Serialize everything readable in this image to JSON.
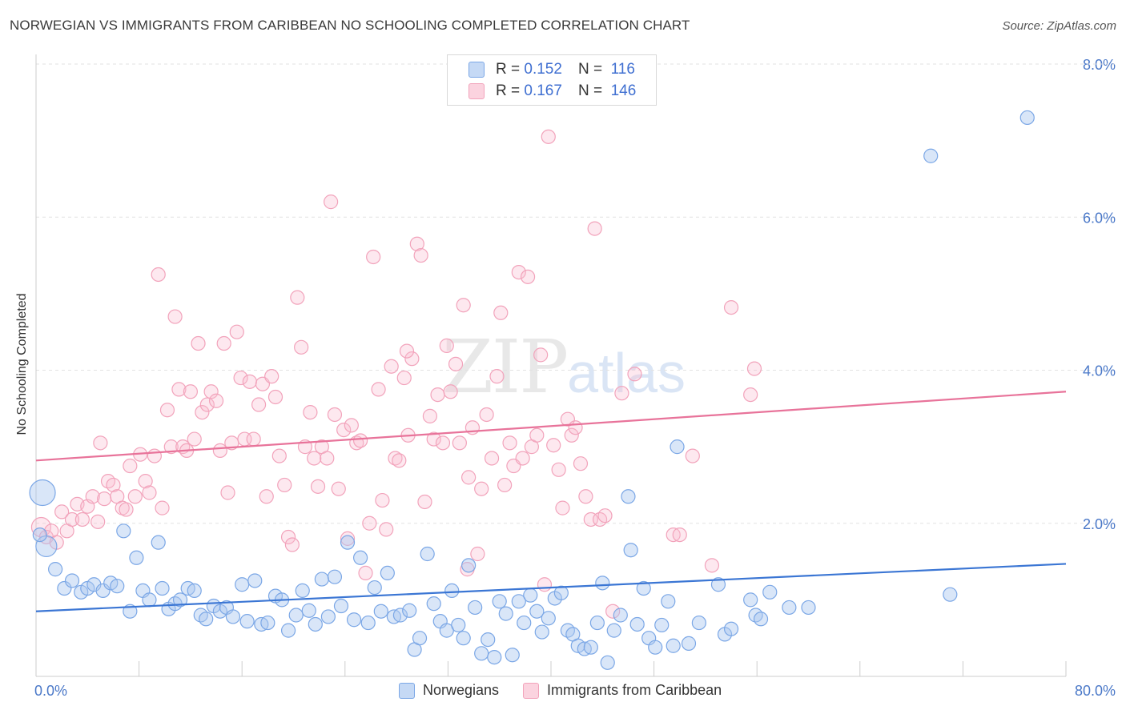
{
  "title": "NORWEGIAN VS IMMIGRANTS FROM CARIBBEAN NO SCHOOLING COMPLETED CORRELATION CHART",
  "source": "Source: ZipAtlas.com",
  "watermark": {
    "zip": "ZIP",
    "atlas": "atlas"
  },
  "legend": {
    "rows": [
      {
        "r_label": "R = ",
        "r_value": "0.152",
        "n_label": "N = ",
        "n_value": "116"
      },
      {
        "r_label": "R = ",
        "r_value": "0.167",
        "n_label": "N = ",
        "n_value": "146"
      }
    ]
  },
  "bottom_legend": [
    "Norwegians",
    "Immigrants from Caribbean"
  ],
  "colors": {
    "blue": "#7ba7e6",
    "blue_line": "#3b76d4",
    "pink": "#f2a3bb",
    "pink_line": "#e8739a",
    "axis_text": "#4a78c8"
  },
  "chart_data": {
    "type": "scatter",
    "title": "NORWEGIAN VS IMMIGRANTS FROM CARIBBEAN NO SCHOOLING COMPLETED CORRELATION CHART",
    "xlabel": "",
    "ylabel": "No Schooling Completed",
    "xlim": [
      0,
      80
    ],
    "ylim": [
      0,
      8.0
    ],
    "y_ticks": [
      "2.0%",
      "4.0%",
      "6.0%",
      "8.0%"
    ],
    "x_ticks": [
      "0.0%",
      "80.0%"
    ],
    "series": [
      {
        "name": "Norwegians",
        "trend": [
          [
            0,
            0.85
          ],
          [
            80,
            1.47
          ]
        ],
        "points": [
          [
            0.5,
            2.4
          ],
          [
            0.8,
            1.7
          ],
          [
            1.5,
            1.4
          ],
          [
            2.2,
            1.15
          ],
          [
            2.8,
            1.25
          ],
          [
            3.5,
            1.1
          ],
          [
            4,
            1.15
          ],
          [
            4.5,
            1.2
          ],
          [
            5.2,
            1.12
          ],
          [
            5.8,
            1.22
          ],
          [
            6.3,
            1.18
          ],
          [
            6.8,
            1.9
          ],
          [
            7.3,
            0.85
          ],
          [
            7.8,
            1.55
          ],
          [
            8.3,
            1.12
          ],
          [
            8.8,
            1.0
          ],
          [
            9.5,
            1.75
          ],
          [
            9.8,
            1.15
          ],
          [
            10.3,
            0.88
          ],
          [
            10.8,
            0.95
          ],
          [
            11.2,
            1.0
          ],
          [
            11.8,
            1.15
          ],
          [
            12.3,
            1.12
          ],
          [
            12.8,
            0.8
          ],
          [
            13.2,
            0.75
          ],
          [
            13.8,
            0.92
          ],
          [
            14.3,
            0.85
          ],
          [
            14.8,
            0.9
          ],
          [
            15.3,
            0.78
          ],
          [
            16,
            1.2
          ],
          [
            16.4,
            0.72
          ],
          [
            17,
            1.25
          ],
          [
            17.5,
            0.68
          ],
          [
            18,
            0.7
          ],
          [
            18.6,
            1.05
          ],
          [
            19.1,
            1.0
          ],
          [
            19.6,
            0.6
          ],
          [
            20.2,
            0.8
          ],
          [
            20.7,
            1.12
          ],
          [
            21.2,
            0.86
          ],
          [
            21.7,
            0.68
          ],
          [
            22.2,
            1.27
          ],
          [
            22.7,
            0.78
          ],
          [
            23.2,
            1.3
          ],
          [
            23.7,
            0.92
          ],
          [
            24.2,
            1.75
          ],
          [
            24.7,
            0.74
          ],
          [
            25.2,
            1.55
          ],
          [
            25.8,
            0.7
          ],
          [
            26.3,
            1.16
          ],
          [
            26.8,
            0.85
          ],
          [
            27.3,
            1.35
          ],
          [
            27.8,
            0.78
          ],
          [
            28.3,
            0.8
          ],
          [
            29,
            0.86
          ],
          [
            29.4,
            0.35
          ],
          [
            29.8,
            0.5
          ],
          [
            30.4,
            1.6
          ],
          [
            30.9,
            0.95
          ],
          [
            31.4,
            0.72
          ],
          [
            31.9,
            0.6
          ],
          [
            32.3,
            1.12
          ],
          [
            32.8,
            0.67
          ],
          [
            33.2,
            0.5
          ],
          [
            33.6,
            1.45
          ],
          [
            34.1,
            0.9
          ],
          [
            34.6,
            0.3
          ],
          [
            35.1,
            0.48
          ],
          [
            35.6,
            0.25
          ],
          [
            36,
            0.98
          ],
          [
            36.5,
            0.82
          ],
          [
            37,
            0.28
          ],
          [
            37.5,
            0.98
          ],
          [
            37.9,
            0.7
          ],
          [
            38.4,
            1.06
          ],
          [
            38.9,
            0.85
          ],
          [
            39.3,
            0.58
          ],
          [
            39.8,
            0.76
          ],
          [
            40.3,
            1.02
          ],
          [
            40.8,
            1.09
          ],
          [
            41.3,
            0.6
          ],
          [
            41.7,
            0.55
          ],
          [
            42.1,
            0.4
          ],
          [
            42.6,
            0.36
          ],
          [
            43.1,
            0.38
          ],
          [
            43.6,
            0.7
          ],
          [
            44,
            1.22
          ],
          [
            44.4,
            0.18
          ],
          [
            44.9,
            0.6
          ],
          [
            45.4,
            0.8
          ],
          [
            46,
            2.35
          ],
          [
            46.2,
            1.65
          ],
          [
            46.7,
            0.68
          ],
          [
            47.2,
            1.15
          ],
          [
            47.6,
            0.5
          ],
          [
            48.1,
            0.38
          ],
          [
            48.6,
            0.67
          ],
          [
            49.1,
            0.98
          ],
          [
            49.5,
            0.4
          ],
          [
            49.8,
            3.0
          ],
          [
            50.7,
            0.43
          ],
          [
            51.5,
            0.7
          ],
          [
            53,
            1.2
          ],
          [
            53.5,
            0.55
          ],
          [
            54,
            0.62
          ],
          [
            55.5,
            1.0
          ],
          [
            55.9,
            0.8
          ],
          [
            56.3,
            0.75
          ],
          [
            57,
            1.1
          ],
          [
            58.5,
            0.9
          ],
          [
            60,
            0.9
          ],
          [
            71,
            1.07
          ],
          [
            69.5,
            6.8
          ],
          [
            77,
            7.3
          ],
          [
            0.3,
            1.85
          ]
        ]
      },
      {
        "name": "Immigrants from Caribbean",
        "trend": [
          [
            0,
            2.82
          ],
          [
            80,
            3.72
          ]
        ],
        "points": [
          [
            0.4,
            1.95
          ],
          [
            0.8,
            1.82
          ],
          [
            1.2,
            1.9
          ],
          [
            1.6,
            1.75
          ],
          [
            2,
            2.15
          ],
          [
            2.4,
            1.9
          ],
          [
            2.8,
            2.05
          ],
          [
            3.2,
            2.25
          ],
          [
            3.6,
            2.05
          ],
          [
            4,
            2.22
          ],
          [
            4.4,
            2.35
          ],
          [
            4.8,
            2.02
          ],
          [
            5,
            3.05
          ],
          [
            5.3,
            2.32
          ],
          [
            5.6,
            2.55
          ],
          [
            6,
            2.5
          ],
          [
            6.3,
            2.35
          ],
          [
            6.7,
            2.2
          ],
          [
            7,
            2.18
          ],
          [
            7.3,
            2.75
          ],
          [
            7.7,
            2.35
          ],
          [
            8.1,
            2.9
          ],
          [
            8.5,
            2.55
          ],
          [
            8.8,
            2.4
          ],
          [
            9.2,
            2.88
          ],
          [
            9.5,
            5.25
          ],
          [
            9.8,
            2.2
          ],
          [
            10.2,
            3.48
          ],
          [
            10.5,
            3.0
          ],
          [
            10.8,
            4.7
          ],
          [
            11.1,
            3.75
          ],
          [
            11.4,
            3.0
          ],
          [
            11.7,
            2.95
          ],
          [
            12,
            3.72
          ],
          [
            12.3,
            3.1
          ],
          [
            12.6,
            4.35
          ],
          [
            12.9,
            3.45
          ],
          [
            13.3,
            3.55
          ],
          [
            13.6,
            3.72
          ],
          [
            14,
            3.6
          ],
          [
            14.3,
            2.95
          ],
          [
            14.6,
            4.35
          ],
          [
            14.9,
            2.4
          ],
          [
            15.2,
            3.05
          ],
          [
            15.6,
            4.5
          ],
          [
            15.9,
            3.9
          ],
          [
            16.2,
            3.1
          ],
          [
            16.6,
            3.85
          ],
          [
            16.9,
            3.1
          ],
          [
            17.3,
            3.55
          ],
          [
            17.6,
            3.82
          ],
          [
            17.9,
            2.35
          ],
          [
            18.3,
            3.92
          ],
          [
            18.6,
            3.65
          ],
          [
            18.9,
            2.88
          ],
          [
            19.3,
            2.5
          ],
          [
            19.6,
            1.82
          ],
          [
            19.9,
            1.72
          ],
          [
            20.3,
            4.95
          ],
          [
            20.6,
            4.3
          ],
          [
            20.9,
            3.0
          ],
          [
            21.3,
            3.45
          ],
          [
            21.6,
            2.85
          ],
          [
            21.9,
            2.48
          ],
          [
            22.2,
            3.0
          ],
          [
            22.6,
            2.85
          ],
          [
            22.9,
            6.2
          ],
          [
            23.2,
            3.42
          ],
          [
            23.5,
            2.45
          ],
          [
            23.9,
            3.22
          ],
          [
            24.2,
            1.8
          ],
          [
            24.5,
            3.28
          ],
          [
            24.9,
            3.05
          ],
          [
            25.2,
            3.08
          ],
          [
            25.6,
            1.35
          ],
          [
            25.9,
            2.0
          ],
          [
            26.2,
            5.48
          ],
          [
            26.6,
            3.75
          ],
          [
            26.9,
            2.3
          ],
          [
            27.2,
            1.92
          ],
          [
            27.6,
            4.05
          ],
          [
            27.9,
            2.85
          ],
          [
            28.2,
            2.82
          ],
          [
            28.6,
            3.9
          ],
          [
            28.9,
            3.15
          ],
          [
            29.2,
            4.15
          ],
          [
            29.6,
            5.65
          ],
          [
            29.9,
            5.5
          ],
          [
            30.2,
            2.28
          ],
          [
            30.6,
            3.4
          ],
          [
            30.9,
            3.1
          ],
          [
            31.2,
            3.68
          ],
          [
            31.6,
            3.05
          ],
          [
            31.9,
            4.32
          ],
          [
            32.2,
            3.72
          ],
          [
            32.6,
            4.08
          ],
          [
            32.9,
            3.05
          ],
          [
            33.2,
            4.85
          ],
          [
            33.6,
            2.6
          ],
          [
            33.9,
            3.25
          ],
          [
            34.3,
            1.6
          ],
          [
            34.6,
            2.45
          ],
          [
            35,
            3.42
          ],
          [
            35.4,
            2.85
          ],
          [
            35.8,
            3.92
          ],
          [
            36.1,
            4.75
          ],
          [
            36.4,
            2.5
          ],
          [
            36.8,
            3.05
          ],
          [
            37.1,
            2.75
          ],
          [
            37.5,
            5.28
          ],
          [
            37.8,
            2.85
          ],
          [
            38.2,
            5.22
          ],
          [
            38.5,
            3.0
          ],
          [
            38.9,
            3.15
          ],
          [
            39.2,
            4.2
          ],
          [
            39.5,
            1.2
          ],
          [
            39.8,
            7.05
          ],
          [
            40.2,
            3.02
          ],
          [
            40.6,
            2.7
          ],
          [
            40.9,
            2.2
          ],
          [
            41.3,
            3.36
          ],
          [
            41.6,
            3.15
          ],
          [
            41.9,
            3.25
          ],
          [
            42.3,
            2.78
          ],
          [
            42.7,
            2.35
          ],
          [
            43.1,
            2.05
          ],
          [
            43.4,
            5.85
          ],
          [
            43.8,
            2.05
          ],
          [
            44.2,
            2.1
          ],
          [
            44.8,
            0.85
          ],
          [
            45.5,
            3.7
          ],
          [
            46.5,
            3.95
          ],
          [
            49.5,
            1.85
          ],
          [
            50,
            1.85
          ],
          [
            51,
            2.88
          ],
          [
            52.5,
            1.45
          ],
          [
            54,
            4.82
          ],
          [
            55.5,
            3.68
          ],
          [
            55.8,
            4.02
          ],
          [
            33.5,
            1.4
          ],
          [
            28.8,
            4.25
          ]
        ]
      }
    ]
  }
}
